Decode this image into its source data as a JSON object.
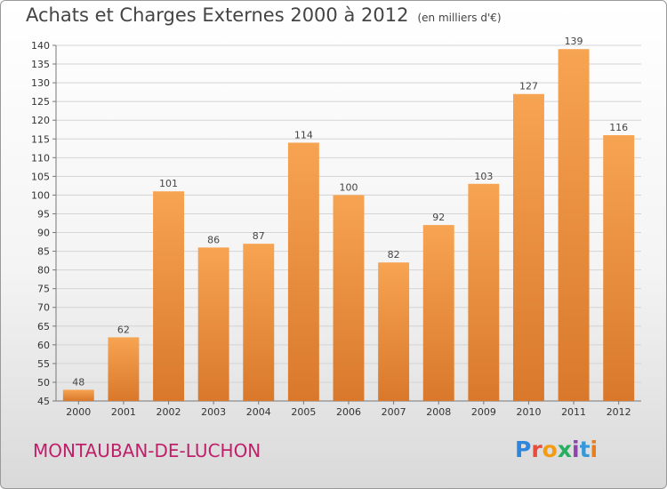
{
  "header": {
    "title": "Achats et Charges Externes 2000 à 2012",
    "unit": "(en milliers d'€)"
  },
  "footer": {
    "commune": "MONTAUBAN-DE-LUCHON",
    "logo_letters": [
      "P",
      "r",
      "o",
      "x",
      "i",
      "t",
      "i"
    ],
    "logo_colors": [
      "#2e86de",
      "#e74c3c",
      "#f39c12",
      "#27ae60",
      "#8e44ad",
      "#3498db",
      "#e67e22"
    ]
  },
  "colors": {
    "bar_light": "#f7a452",
    "bar_dark": "#d9782b",
    "commune_text": "#c0206a"
  },
  "chart_data": {
    "type": "bar",
    "categories": [
      "2000",
      "2001",
      "2002",
      "2003",
      "2004",
      "2005",
      "2006",
      "2007",
      "2008",
      "2009",
      "2010",
      "2011",
      "2012"
    ],
    "values": [
      48,
      62,
      101,
      86,
      87,
      114,
      100,
      82,
      92,
      103,
      127,
      139,
      116
    ],
    "data_labels": [
      "48",
      "62",
      "101",
      "86",
      "87",
      "114",
      "100",
      "82",
      "92",
      "103",
      "127",
      "139",
      "116"
    ],
    "title": "Achats et Charges Externes 2000 à 2012",
    "xlabel": "",
    "ylabel": "",
    "ylim": [
      45,
      140
    ],
    "yticks": [
      45,
      50,
      55,
      60,
      65,
      70,
      75,
      80,
      85,
      90,
      95,
      100,
      105,
      110,
      115,
      120,
      125,
      130,
      135,
      140
    ],
    "grid": true,
    "legend": "none"
  }
}
